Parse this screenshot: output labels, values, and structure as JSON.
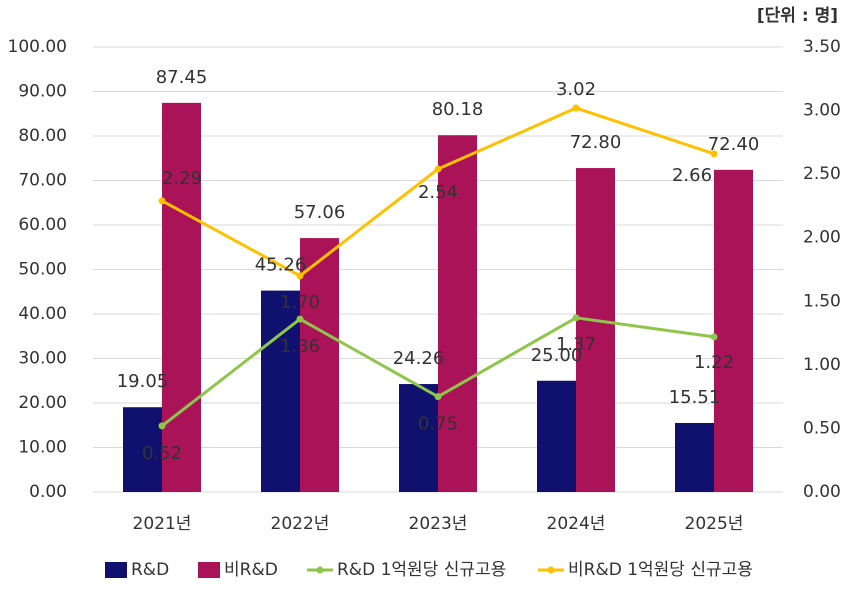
{
  "chart_data": {
    "type": "combo",
    "unit_label": "[단위 : 명]",
    "categories": [
      "2021년",
      "2022년",
      "2023년",
      "2024년",
      "2025년"
    ],
    "series": [
      {
        "name": "R&D",
        "type": "bar",
        "color": "#10106e",
        "label_color": "#10106e",
        "values": [
          19.05,
          45.26,
          24.26,
          25,
          15.51
        ],
        "value_labels": [
          "19.05",
          "45.26",
          "24.26",
          "25.00",
          "15.51"
        ]
      },
      {
        "name": "비R&D",
        "type": "bar",
        "color": "#ab1359",
        "label_color": "#a5124f",
        "values": [
          87.45,
          57.06,
          80.18,
          72.8,
          72.4
        ],
        "value_labels": [
          "87.45",
          "57.06",
          "80.18",
          "72.80",
          "72.40"
        ]
      },
      {
        "name": "R&D 1억원당 신규고용",
        "type": "line",
        "axis": "y2",
        "color": "#8ec64b",
        "label_color": "#8ec64b",
        "values": [
          0.52,
          1.36,
          0.75,
          1.37,
          1.22
        ],
        "value_labels": [
          "0.52",
          "1.36",
          "0.75",
          "1.37",
          "1.22"
        ]
      },
      {
        "name": "비R&D 1억원당 신규고용",
        "type": "line",
        "axis": "y2",
        "color": "#ffc000",
        "label_color": "#ffb900",
        "values": [
          2.29,
          1.7,
          2.54,
          3.02,
          2.66
        ],
        "value_labels": [
          "2.29",
          "1.70",
          "2.54",
          "3.02",
          "2.66"
        ]
      }
    ],
    "ylim": [
      0,
      100
    ],
    "yticks": [
      {
        "value": 0,
        "label": "0.00"
      },
      {
        "value": 10,
        "label": "10.00"
      },
      {
        "value": 20,
        "label": "20.00"
      },
      {
        "value": 30,
        "label": "30.00"
      },
      {
        "value": 40,
        "label": "40.00"
      },
      {
        "value": 50,
        "label": "50.00"
      },
      {
        "value": 60,
        "label": "60.00"
      },
      {
        "value": 70,
        "label": "70.00"
      },
      {
        "value": 80,
        "label": "80.00"
      },
      {
        "value": 90,
        "label": "90.00"
      },
      {
        "value": 100,
        "label": "100.00"
      }
    ],
    "y2lim": [
      0,
      3.5
    ],
    "y2ticks": [
      {
        "value": 0,
        "label": "0.00"
      },
      {
        "value": 0.5,
        "label": "0.50"
      },
      {
        "value": 1,
        "label": "1.00"
      },
      {
        "value": 1.5,
        "label": "1.50"
      },
      {
        "value": 2,
        "label": "2.00"
      },
      {
        "value": 2.5,
        "label": "2.50"
      },
      {
        "value": 3,
        "label": "3.00"
      },
      {
        "value": 3.5,
        "label": "3.50"
      }
    ],
    "grid": true,
    "grid_color": "#d9d9d9",
    "legend": "bottom"
  }
}
